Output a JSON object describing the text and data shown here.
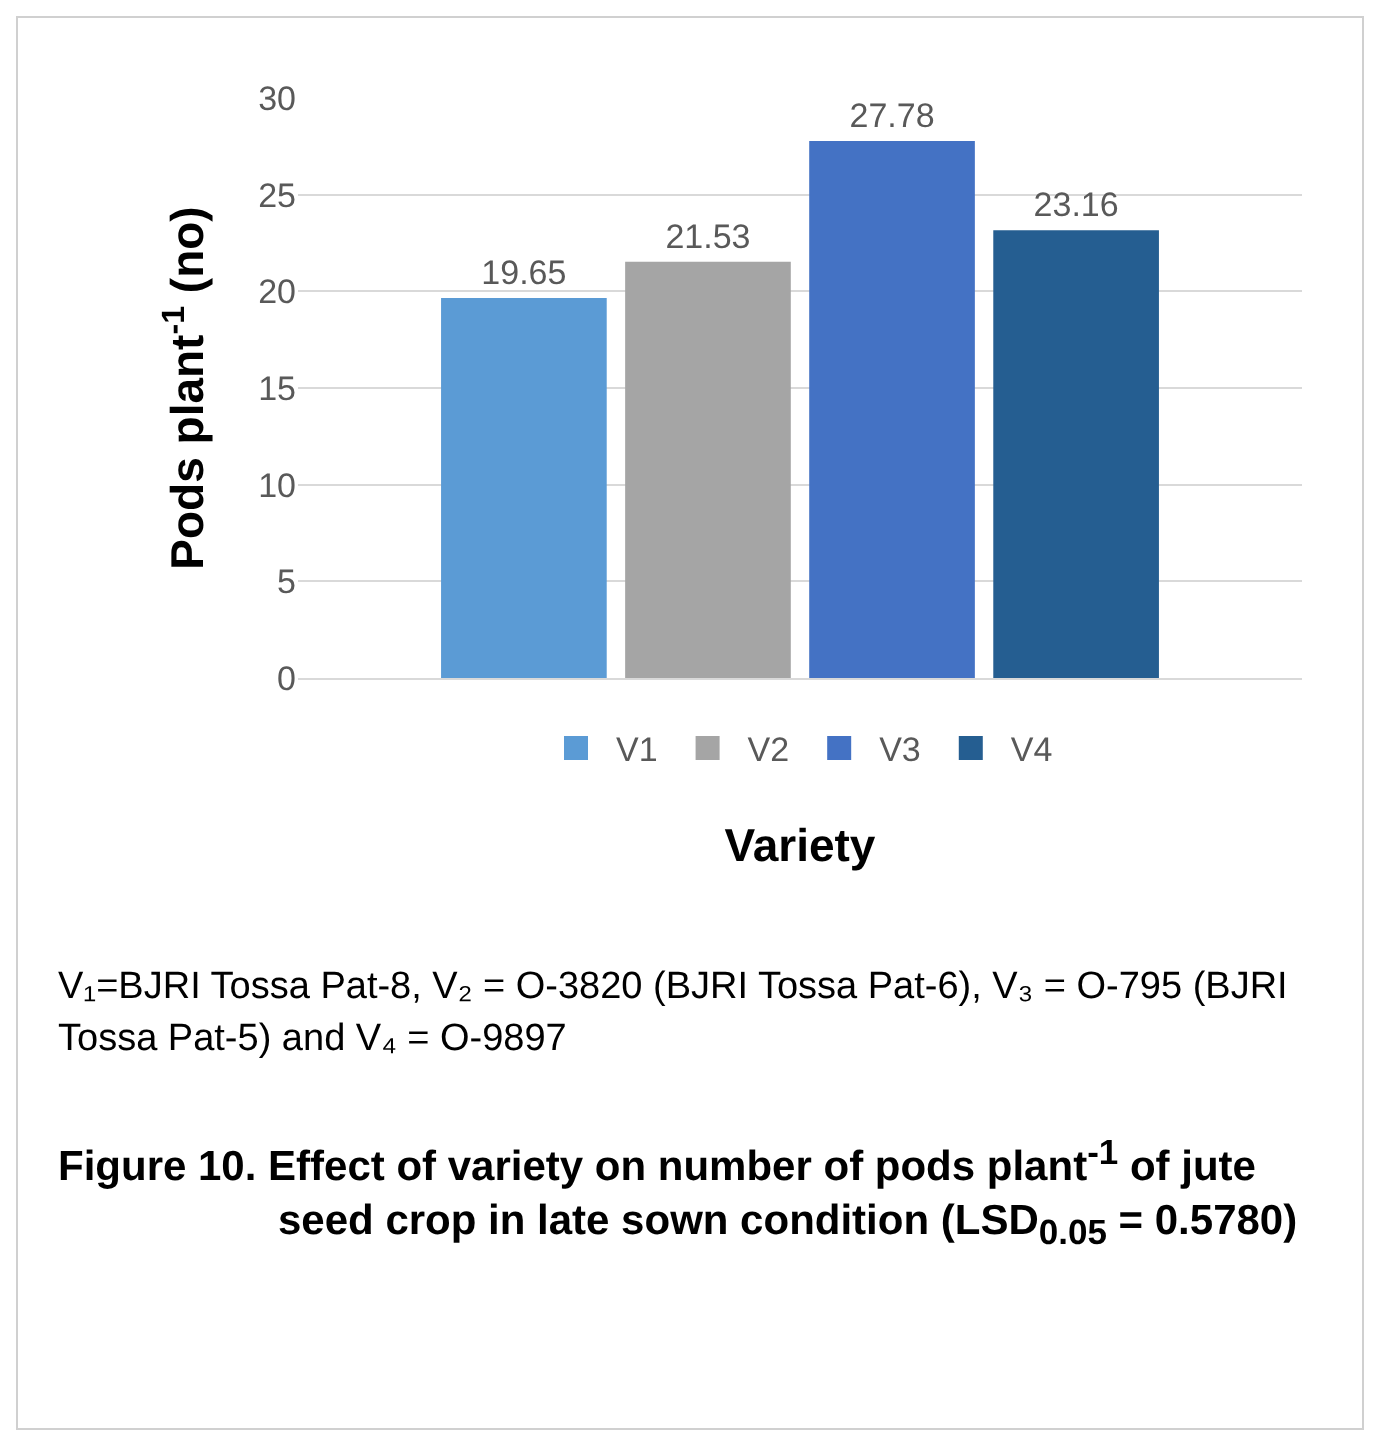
{
  "chart_data": {
    "type": "bar",
    "title": "Figure 10. Effect of variety on number of pods plant$^{-1}$ of jute seed crop in late sown condition (LSD$_{0.05}$ = 0.5780)",
    "ylabel": "Pods plant$^{-1}$ (no)",
    "xlabel": "Variety",
    "annotations": [
      "V₁=BJRI Tossa Pat-8, V₂ = O-3820 (BJRI Tossa Pat-6), V₃ = O-795 (BJRI Tossa Pat-5) and V₄ = O-9897"
    ],
    "categories": [
      null
    ],
    "series": [
      {
        "name": "V1",
        "color": "#5b9bd5",
        "values": [
          19.65
        ]
      },
      {
        "name": "V2",
        "color": "#a5a5a5",
        "values": [
          21.53
        ]
      },
      {
        "name": "V3",
        "color": "#4472c4",
        "values": [
          27.78
        ]
      },
      {
        "name": "V4",
        "color": "#255e91",
        "values": [
          23.16
        ]
      }
    ],
    "ylim": [
      0,
      30
    ],
    "yticks": [
      0,
      5,
      10,
      15,
      20,
      25,
      30
    ],
    "grid": "y",
    "legend": "bottom",
    "tick_labels": "y",
    "data_labels": true
  }
}
